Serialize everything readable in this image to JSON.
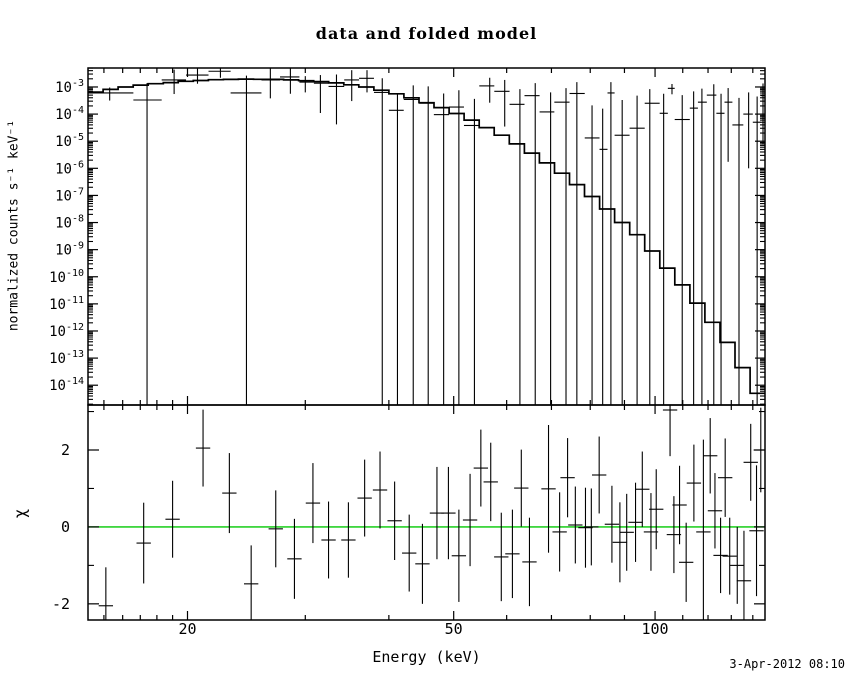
{
  "title": "data and folded model",
  "timestamp": "3-Apr-2012 08:10",
  "colors": {
    "foreground": "#000000",
    "background": "#ffffff",
    "zero_line_green": "#00c800"
  },
  "axes": {
    "x": {
      "label": "Energy (keV)",
      "scale": "log",
      "min": 14.2,
      "max": 146,
      "major_ticks": [
        20,
        50,
        100
      ],
      "major_tick_labels": [
        "20",
        "50",
        "100"
      ],
      "minor_ticks": [
        15,
        16,
        17,
        18,
        19,
        30,
        40,
        60,
        70,
        80,
        90,
        110,
        120,
        130,
        140
      ]
    },
    "top_y": {
      "label": "normalized counts s⁻¹ keV⁻¹",
      "scale": "log",
      "min_exp": -14.73,
      "max_exp": -2.3,
      "decade_exponents": [
        -3,
        -4,
        -5,
        -6,
        -7,
        -8,
        -9,
        -10,
        -11,
        -12,
        -13,
        -14
      ],
      "label_base": "10"
    },
    "bottom_y": {
      "label": "χ",
      "scale": "linear",
      "min": -2.42,
      "max": 3.17,
      "major_ticks": [
        -2,
        0,
        2
      ],
      "major_tick_labels": [
        "-2",
        "0",
        "2"
      ],
      "minor_ticks": [
        -1,
        1,
        3
      ]
    }
  },
  "chart_data": [
    {
      "type": "line",
      "panel": "top",
      "name": "folded model with data points",
      "xscale": "log",
      "yscale": "log",
      "xlim_keV": [
        14.2,
        146
      ],
      "ylim_log10": [
        -14.73,
        -2.3
      ],
      "legend": "none",
      "grid": false,
      "model_bin_edges_keV": [
        14.2,
        14.96,
        15.75,
        16.59,
        17.47,
        18.4,
        19.37,
        20.4,
        21.49,
        22.63,
        23.83,
        25.1,
        26.43,
        27.84,
        29.32,
        30.88,
        32.52,
        34.25,
        36.07,
        37.99,
        40.01,
        42.13,
        44.37,
        46.73,
        49.22,
        51.83,
        54.59,
        57.49,
        60.55,
        63.77,
        67.16,
        70.73,
        74.49,
        78.45,
        82.62,
        87.01,
        91.64,
        96.51,
        101.64,
        107.04,
        112.73,
        118.73,
        125.04,
        131.69,
        138.69,
        146.06
      ],
      "model_log10_flux": [
        -3.19,
        -3.09,
        -3.0,
        -2.93,
        -2.88,
        -2.84,
        -2.79,
        -2.76,
        -2.73,
        -2.72,
        -2.71,
        -2.715,
        -2.72,
        -2.74,
        -2.77,
        -2.8,
        -2.85,
        -2.92,
        -3.0,
        -3.12,
        -3.25,
        -3.4,
        -3.58,
        -3.76,
        -3.98,
        -4.22,
        -4.5,
        -4.78,
        -5.1,
        -5.44,
        -5.8,
        -6.18,
        -6.6,
        -7.04,
        -7.5,
        -8.0,
        -8.45,
        -9.05,
        -9.68,
        -10.3,
        -10.97,
        -11.68,
        -12.42,
        -13.35,
        -14.3
      ],
      "points_format": [
        "E_keV",
        "E_lo_keV",
        "E_hi_keV",
        "log10_flux",
        "err_up_dex",
        "err_dn_dex_null_means_extends_to_bottom"
      ],
      "points": [
        [
          15.3,
          14.2,
          16.6,
          -3.22,
          0.2,
          0.28
        ],
        [
          17.4,
          16.6,
          18.3,
          -3.48,
          0.62,
          null
        ],
        [
          19.1,
          18.3,
          19.9,
          -2.74,
          0.38,
          0.52
        ],
        [
          20.7,
          19.9,
          21.5,
          -2.56,
          0.24,
          0.32
        ],
        [
          22.4,
          21.5,
          23.2,
          -2.42,
          0.18,
          0.24
        ],
        [
          24.5,
          23.2,
          25.8,
          -3.22,
          0.64,
          null
        ],
        [
          26.6,
          25.8,
          27.5,
          -2.74,
          0.52,
          0.68
        ],
        [
          28.5,
          27.5,
          29.4,
          -2.63,
          0.44,
          0.62
        ],
        [
          30.0,
          29.4,
          30.9,
          -2.82,
          0.22,
          0.38
        ],
        [
          31.6,
          30.9,
          32.5,
          -2.86,
          0.3,
          1.1
        ],
        [
          33.4,
          32.5,
          34.3,
          -2.98,
          0.44,
          1.4
        ],
        [
          35.2,
          34.3,
          36.1,
          -2.74,
          0.36,
          0.78
        ],
        [
          37.1,
          36.1,
          38.0,
          -2.68,
          0.3,
          0.52
        ],
        [
          39.1,
          38.0,
          40.0,
          -3.2,
          0.52,
          null
        ],
        [
          41.2,
          40.0,
          42.1,
          -3.86,
          0.62,
          null
        ],
        [
          43.5,
          42.1,
          44.4,
          -3.46,
          0.52,
          null
        ],
        [
          45.8,
          44.4,
          46.7,
          -3.6,
          0.62,
          null
        ],
        [
          48.3,
          46.7,
          49.2,
          -4.02,
          0.78,
          null
        ],
        [
          50.9,
          49.2,
          51.8,
          -3.74,
          0.62,
          null
        ],
        [
          53.7,
          51.8,
          54.6,
          -4.42,
          0.98,
          null
        ],
        [
          56.6,
          54.6,
          57.5,
          -2.96,
          0.3,
          0.62
        ],
        [
          59.6,
          57.5,
          60.6,
          -3.16,
          0.42,
          1.3
        ],
        [
          62.8,
          60.6,
          63.8,
          -3.64,
          0.56,
          null
        ],
        [
          66.2,
          63.8,
          67.2,
          -3.32,
          0.46,
          null
        ],
        [
          69.8,
          67.2,
          70.7,
          -3.92,
          0.72,
          null
        ],
        [
          73.6,
          70.7,
          74.5,
          -3.56,
          0.52,
          null
        ],
        [
          76.4,
          74.5,
          78.5,
          -3.24,
          0.42,
          null
        ],
        [
          80.5,
          78.5,
          82.6,
          -4.88,
          1.2,
          null
        ],
        [
          83.5,
          82.6,
          84.9,
          -5.3,
          1.5,
          null
        ],
        [
          85.9,
          84.9,
          87.0,
          -3.22,
          0.4,
          null
        ],
        [
          89.3,
          87.0,
          91.6,
          -4.78,
          1.3,
          null
        ],
        [
          94.0,
          91.6,
          96.5,
          -4.52,
          1.2,
          null
        ],
        [
          98.2,
          96.5,
          101.6,
          -3.6,
          0.52,
          null
        ],
        [
          103.0,
          101.6,
          104.5,
          -3.97,
          0.72,
          null
        ],
        [
          106.0,
          104.5,
          107.0,
          -3.05,
          0.16,
          0.22
        ],
        [
          109.8,
          107.0,
          112.7,
          -4.2,
          0.9,
          null
        ],
        [
          114.2,
          112.7,
          115.9,
          -3.78,
          0.62,
          null
        ],
        [
          117.5,
          115.9,
          119.5,
          -3.56,
          0.5,
          null
        ],
        [
          122.4,
          119.5,
          123.5,
          -3.3,
          0.4,
          null
        ],
        [
          125.5,
          123.5,
          127.0,
          -3.97,
          0.72,
          null
        ],
        [
          128.6,
          127.0,
          130.5,
          -3.56,
          0.52,
          2.2
        ],
        [
          133.5,
          130.5,
          135.5,
          -4.4,
          1.0,
          null
        ],
        [
          138.0,
          135.5,
          140.0,
          -4.0,
          0.8,
          2.0
        ],
        [
          142.1,
          140.0,
          143.8,
          -4.3,
          0.95,
          null
        ],
        [
          145.0,
          143.8,
          146.0,
          -3.32,
          0.45,
          1.8
        ]
      ]
    },
    {
      "type": "scatter",
      "panel": "bottom",
      "name": "chi residuals",
      "xscale": "log",
      "xlim_keV": [
        14.2,
        146
      ],
      "ylim": [
        -2.42,
        3.17
      ],
      "zero_line": 0,
      "x_half_width_factor": 1.025,
      "points_format": [
        "E_keV",
        "chi",
        "err"
      ],
      "points": [
        [
          15.1,
          -2.05,
          1.0
        ],
        [
          17.2,
          -0.42,
          1.05
        ],
        [
          19.0,
          0.2,
          1.0
        ],
        [
          21.1,
          2.05,
          1.0
        ],
        [
          23.1,
          0.88,
          1.04
        ],
        [
          24.9,
          -1.48,
          1.0
        ],
        [
          27.1,
          -0.05,
          1.0
        ],
        [
          28.9,
          -0.83,
          1.04
        ],
        [
          30.8,
          0.62,
          1.04
        ],
        [
          32.5,
          -0.34,
          1.0
        ],
        [
          34.8,
          -0.34,
          0.98
        ],
        [
          36.8,
          0.75,
          1.0
        ],
        [
          38.8,
          0.96,
          1.0
        ],
        [
          40.8,
          0.16,
          1.02
        ],
        [
          42.9,
          -0.68,
          1.0
        ],
        [
          44.9,
          -0.96,
          1.04
        ],
        [
          47.2,
          0.36,
          1.2
        ],
        [
          49.1,
          0.36,
          1.2
        ],
        [
          50.9,
          -0.75,
          1.2
        ],
        [
          52.9,
          0.18,
          1.2
        ],
        [
          54.9,
          1.53,
          1.0
        ],
        [
          56.8,
          1.17,
          1.02
        ],
        [
          58.9,
          -0.78,
          1.15
        ],
        [
          61.2,
          -0.7,
          1.15
        ],
        [
          63.1,
          1.01,
          1.0
        ],
        [
          64.9,
          -0.91,
          1.15
        ],
        [
          69.3,
          0.99,
          1.66
        ],
        [
          72.0,
          -0.13,
          1.03
        ],
        [
          74.0,
          1.28,
          1.03
        ],
        [
          76.0,
          0.05,
          1.0
        ],
        [
          78.7,
          -0.02,
          1.04
        ],
        [
          80.3,
          0.0,
          1.0
        ],
        [
          82.5,
          1.35,
          1.0
        ],
        [
          86.2,
          0.07,
          1.0
        ],
        [
          88.6,
          -0.4,
          1.04
        ],
        [
          90.7,
          -0.14,
          1.0
        ],
        [
          93.5,
          0.12,
          1.03
        ],
        [
          95.7,
          0.98,
          0.98
        ],
        [
          98.6,
          -0.13,
          1.01
        ],
        [
          100.4,
          0.46,
          1.04
        ],
        [
          105.3,
          3.04,
          1.2
        ],
        [
          106.7,
          -0.2,
          1.0
        ],
        [
          108.8,
          0.57,
          1.02
        ],
        [
          111.3,
          -0.92,
          1.03
        ],
        [
          114.3,
          1.14,
          1.0
        ],
        [
          118.1,
          -0.13,
          2.4
        ],
        [
          120.9,
          1.85,
          0.98
        ],
        [
          122.9,
          0.42,
          0.98
        ],
        [
          125.3,
          -0.74,
          0.98
        ],
        [
          127.3,
          1.28,
          1.02
        ],
        [
          129.3,
          -0.76,
          1.0
        ],
        [
          132.7,
          -1.0,
          1.0
        ],
        [
          135.8,
          -1.4,
          1.3
        ],
        [
          139.0,
          1.68,
          1.0
        ],
        [
          141.8,
          -0.1,
          1.7
        ],
        [
          143.9,
          2.0,
          1.1
        ]
      ]
    }
  ]
}
